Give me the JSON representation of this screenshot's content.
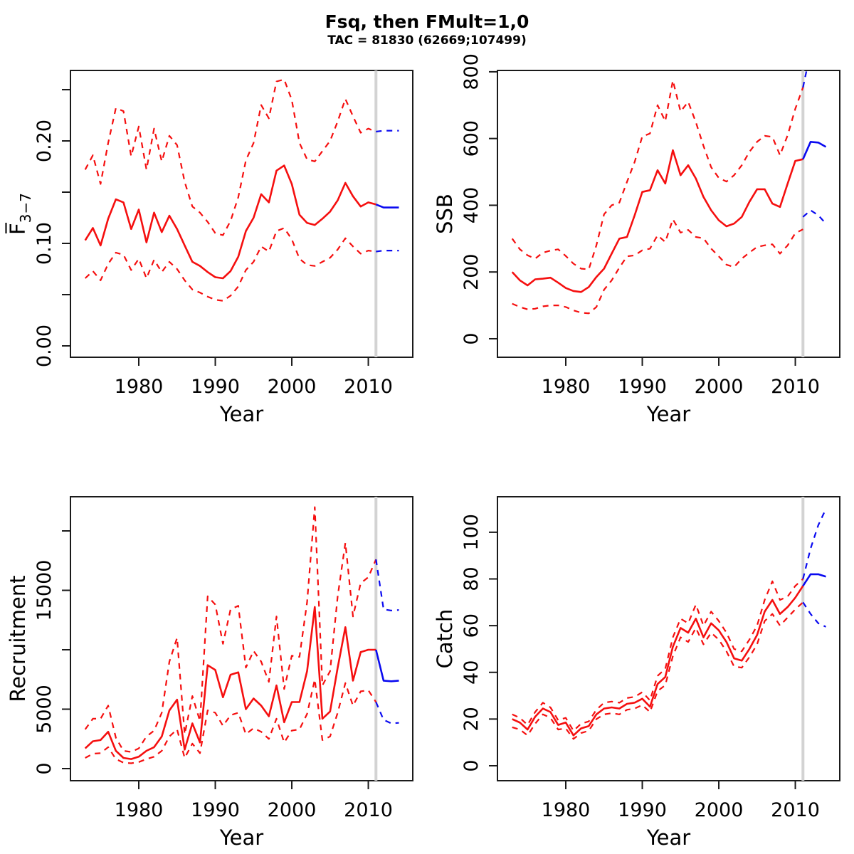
{
  "header": {
    "title": "Fsq, then FMult=1,0",
    "subtitle": "TAC = 81830 (62669;107499)"
  },
  "chart_data": {
    "type": "line",
    "x_label": "Year",
    "divider_year": 2011,
    "x_range": [
      1971.07,
      2015.81
    ],
    "x_ticks": {
      "values": [
        1980,
        1990,
        2000,
        2010
      ],
      "labels": [
        "1980",
        "1990",
        "2000",
        "2010"
      ]
    },
    "years_historical": [
      1973,
      1974,
      1975,
      1976,
      1977,
      1978,
      1979,
      1980,
      1981,
      1982,
      1983,
      1984,
      1985,
      1986,
      1987,
      1988,
      1989,
      1990,
      1991,
      1992,
      1993,
      1994,
      1995,
      1996,
      1997,
      1998,
      1999,
      2000,
      2001,
      2002,
      2003,
      2004,
      2005,
      2006,
      2007,
      2008,
      2009,
      2010,
      2011
    ],
    "years_forecast": [
      2011,
      2012,
      2013,
      2014
    ],
    "colors": {
      "historical": "#f50f0f",
      "forecast": "#0a0af0",
      "divider": "#d3d3d3",
      "axis": "#1a1a1a"
    },
    "line_styles": {
      "median": "solid",
      "upper": "dashed",
      "lower": "dashed"
    },
    "panels": [
      {
        "id": "fbar",
        "y_label": "F",
        "y_label_overline": true,
        "y_label_subscript": "3−7",
        "y_range": [
          -0.0111,
          0.26875
        ],
        "y_ticks": {
          "values": [
            0,
            0.05,
            0.1,
            0.15,
            0.2,
            0.25
          ],
          "labels": [
            "0.00",
            "",
            "0.10",
            "",
            "0.20",
            ""
          ]
        },
        "historical": {
          "median": [
            0.103,
            0.115,
            0.098,
            0.124,
            0.143,
            0.14,
            0.114,
            0.133,
            0.101,
            0.13,
            0.111,
            0.127,
            0.114,
            0.098,
            0.082,
            0.078,
            0.072,
            0.067,
            0.066,
            0.073,
            0.087,
            0.112,
            0.125,
            0.148,
            0.14,
            0.171,
            0.176,
            0.158,
            0.128,
            0.12,
            0.118,
            0.124,
            0.131,
            0.142,
            0.159,
            0.146,
            0.136,
            0.14,
            0.138
          ],
          "upper": [
            0.172,
            0.186,
            0.158,
            0.198,
            0.232,
            0.229,
            0.185,
            0.214,
            0.172,
            0.212,
            0.18,
            0.205,
            0.196,
            0.16,
            0.136,
            0.13,
            0.121,
            0.11,
            0.108,
            0.122,
            0.145,
            0.181,
            0.198,
            0.235,
            0.222,
            0.258,
            0.26,
            0.24,
            0.198,
            0.182,
            0.18,
            0.19,
            0.2,
            0.219,
            0.241,
            0.224,
            0.208,
            0.212,
            0.209
          ],
          "lower": [
            0.066,
            0.073,
            0.064,
            0.08,
            0.091,
            0.089,
            0.074,
            0.085,
            0.066,
            0.084,
            0.072,
            0.082,
            0.075,
            0.064,
            0.055,
            0.052,
            0.048,
            0.045,
            0.044,
            0.049,
            0.058,
            0.074,
            0.082,
            0.097,
            0.092,
            0.112,
            0.115,
            0.104,
            0.085,
            0.079,
            0.078,
            0.082,
            0.086,
            0.094,
            0.105,
            0.097,
            0.09,
            0.093,
            0.092
          ]
        },
        "forecast": {
          "median": [
            0.138,
            0.135,
            0.135,
            0.135
          ],
          "upper": [
            0.209,
            0.21,
            0.21,
            0.21
          ],
          "lower": [
            0.092,
            0.093,
            0.093,
            0.093
          ]
        }
      },
      {
        "id": "ssb",
        "y_label": "SSB",
        "y_range": [
          -55.5,
          804
        ],
        "y_ticks": {
          "values": [
            0,
            200,
            400,
            600,
            800
          ],
          "labels": [
            "0",
            "200",
            "400",
            "600",
            "800"
          ]
        },
        "historical": {
          "median": [
            200,
            175,
            160,
            178,
            180,
            183,
            168,
            152,
            143,
            140,
            155,
            185,
            210,
            255,
            300,
            305,
            370,
            440,
            445,
            505,
            465,
            565,
            490,
            520,
            480,
            425,
            385,
            355,
            337,
            345,
            365,
            410,
            448,
            448,
            405,
            395,
            465,
            533,
            538
          ],
          "upper": [
            300,
            268,
            250,
            240,
            258,
            264,
            268,
            248,
            225,
            210,
            208,
            280,
            373,
            400,
            408,
            470,
            530,
            606,
            615,
            700,
            652,
            774,
            681,
            710,
            649,
            578,
            514,
            482,
            471,
            490,
            520,
            560,
            590,
            608,
            605,
            550,
            610,
            689,
            753
          ],
          "lower": [
            105,
            95,
            88,
            90,
            97,
            100,
            100,
            95,
            85,
            78,
            76,
            95,
            147,
            175,
            213,
            247,
            250,
            265,
            270,
            310,
            290,
            358,
            318,
            326,
            305,
            301,
            270,
            247,
            222,
            215,
            240,
            258,
            275,
            280,
            283,
            255,
            280,
            316,
            328
          ]
        },
        "forecast": {
          "median": [
            538,
            590,
            588,
            575
          ],
          "upper": [
            753,
            860,
            900,
            920
          ],
          "lower": [
            365,
            385,
            370,
            345
          ]
        }
      },
      {
        "id": "recruitment",
        "y_label": "Recruitment",
        "y_range": [
          -1018,
          22875
        ],
        "y_ticks": {
          "values": [
            0,
            5000,
            10000,
            15000,
            20000
          ],
          "labels": [
            "0",
            "5000",
            "",
            "15000",
            ""
          ]
        },
        "historical": {
          "median": [
            1700,
            2300,
            2400,
            3100,
            1500,
            900,
            800,
            1000,
            1500,
            1800,
            2700,
            4900,
            5800,
            1600,
            3800,
            2200,
            8700,
            8300,
            6000,
            7900,
            8100,
            5000,
            5900,
            5300,
            4400,
            7000,
            3900,
            5600,
            5600,
            8200,
            13600,
            4200,
            4800,
            8500,
            11900,
            7400,
            9800,
            10000,
            10000
          ],
          "upper": [
            3300,
            4200,
            4200,
            5300,
            2600,
            1500,
            1400,
            1700,
            2700,
            3200,
            4700,
            9000,
            11000,
            2900,
            6100,
            4000,
            14500,
            13800,
            10500,
            13400,
            13700,
            8500,
            9900,
            9000,
            7300,
            12800,
            6700,
            9500,
            9400,
            14000,
            22000,
            7000,
            8200,
            14500,
            19000,
            12800,
            15600,
            16100,
            17600
          ],
          "lower": [
            900,
            1250,
            1300,
            1800,
            800,
            500,
            450,
            550,
            800,
            1000,
            1500,
            2700,
            3300,
            900,
            2100,
            1300,
            4900,
            4700,
            3600,
            4500,
            4700,
            2900,
            3400,
            3100,
            2500,
            4200,
            2200,
            3200,
            3300,
            4600,
            7500,
            2400,
            2700,
            4700,
            7200,
            5300,
            6500,
            6600,
            5600
          ]
        },
        "forecast": {
          "median": [
            10000,
            7400,
            7350,
            7400
          ],
          "upper": [
            17600,
            13400,
            13300,
            13350
          ],
          "lower": [
            5600,
            4100,
            3800,
            3850
          ]
        }
      },
      {
        "id": "catch",
        "y_label": "Catch",
        "y_range": [
          -6.4,
          115.2
        ],
        "y_ticks": {
          "values": [
            0,
            20,
            40,
            60,
            80,
            100
          ],
          "labels": [
            "0",
            "20",
            "40",
            "60",
            "80",
            "100"
          ]
        },
        "historical": {
          "median": [
            20,
            18.5,
            15.5,
            21,
            24.5,
            23,
            17.5,
            18.5,
            13,
            16,
            17,
            22,
            24.5,
            25,
            24.5,
            26.5,
            27,
            28.7,
            25.3,
            35,
            38,
            51,
            59,
            57,
            63,
            55,
            61,
            58,
            53,
            46,
            45,
            50,
            56,
            66,
            71,
            65,
            68,
            72,
            77
          ],
          "upper": [
            22,
            20.5,
            17.5,
            23,
            27,
            25,
            19.5,
            20.5,
            15,
            18,
            19,
            24,
            27,
            27.5,
            27,
            29,
            29.5,
            31.5,
            28,
            38.5,
            41.5,
            55,
            63,
            61,
            69,
            60,
            66,
            62,
            57,
            50,
            49,
            54,
            60,
            71,
            79,
            71,
            72.5,
            77,
            80
          ],
          "lower": [
            16.5,
            15.5,
            13,
            18,
            22,
            20.5,
            15.5,
            16,
            11.5,
            14,
            15,
            20,
            22,
            22.5,
            22,
            24,
            24.5,
            26,
            23,
            32,
            34.5,
            47,
            55,
            53,
            59,
            52,
            57,
            54,
            49,
            42.5,
            42,
            46.5,
            52,
            62,
            65,
            60,
            63.5,
            67,
            70
          ]
        },
        "forecast": {
          "median": [
            77,
            82,
            82,
            81
          ],
          "upper": [
            80,
            93,
            103,
            110
          ],
          "lower": [
            70,
            65,
            61,
            59.5
          ]
        }
      }
    ]
  }
}
